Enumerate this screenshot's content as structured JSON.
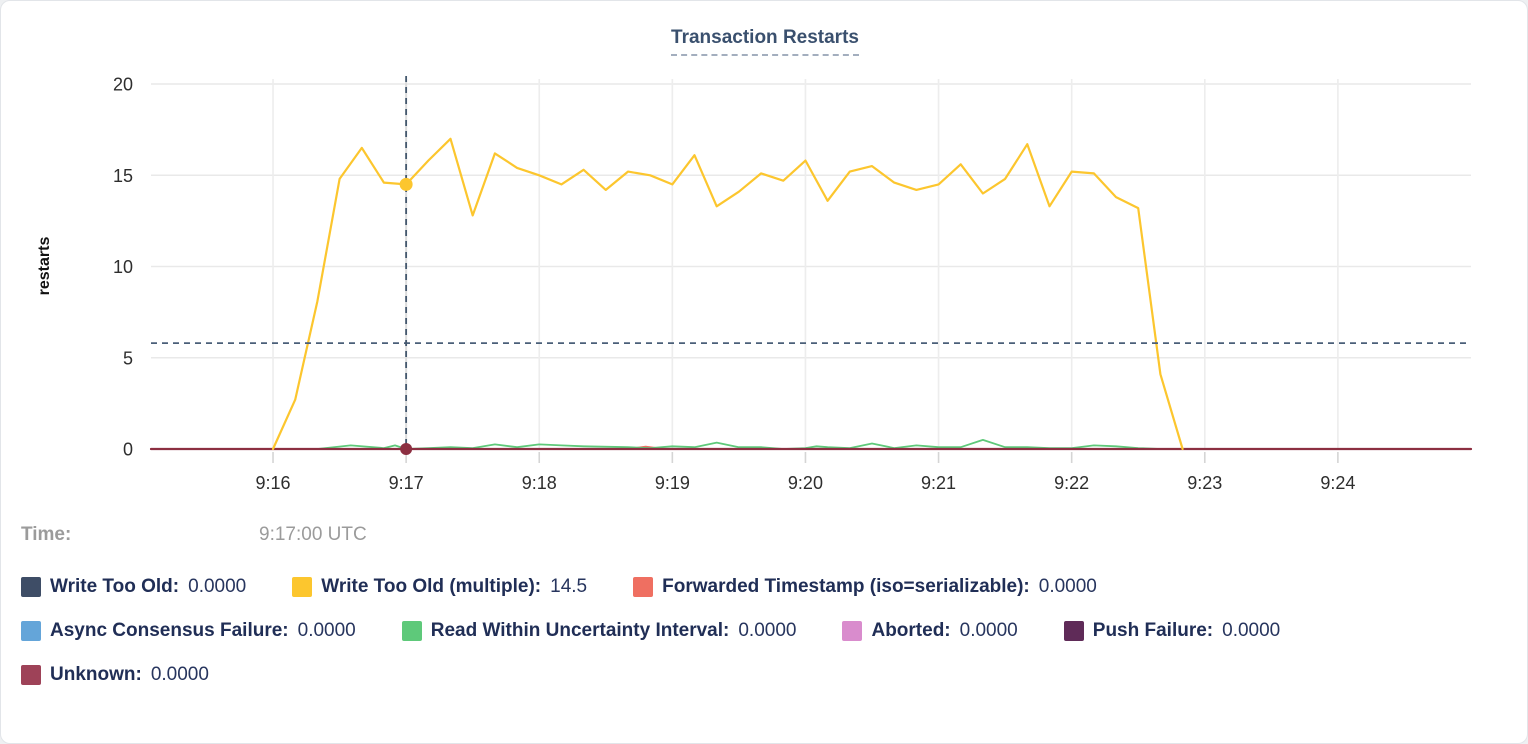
{
  "hover": {
    "time_label": "Time:",
    "time_value": "9:17:00 UTC"
  },
  "legend": {
    "rows": [
      [
        {
          "label": "Write Too Old:",
          "value": "0.0000",
          "color": "#3e4d66"
        },
        {
          "label": "Write Too Old (multiple):",
          "value": "14.5",
          "color": "#fcc62e"
        },
        {
          "label": "Forwarded Timestamp (iso=serializable):",
          "value": "0.0000",
          "color": "#ef6f61"
        }
      ],
      [
        {
          "label": "Async Consensus Failure:",
          "value": "0.0000",
          "color": "#64a5d9"
        },
        {
          "label": "Read Within Uncertainty Interval:",
          "value": "0.0000",
          "color": "#5ec97a"
        },
        {
          "label": "Aborted:",
          "value": "0.0000",
          "color": "#d98ccd"
        },
        {
          "label": "Push Failure:",
          "value": "0.0000",
          "color": "#5f2b58"
        }
      ],
      [
        {
          "label": "Unknown:",
          "value": "0.0000",
          "color": "#9e4258"
        }
      ]
    ]
  },
  "chart_data": {
    "type": "line",
    "title": "Transaction Restarts",
    "xlabel": "",
    "ylabel": "restarts",
    "ylim": [
      0,
      20
    ],
    "yticks": [
      0,
      5,
      10,
      15,
      20
    ],
    "xtick_labels": [
      "9:16",
      "9:17",
      "9:18",
      "9:19",
      "9:20",
      "9:21",
      "9:22",
      "9:23",
      "9:24"
    ],
    "x_domain": [
      "9:15:05",
      "9:25:00"
    ],
    "grid": true,
    "legend_position": "bottom",
    "crosshair": {
      "x": "9:17:00",
      "hline_value": 5.8,
      "points": [
        {
          "series": "Write Too Old (multiple)",
          "value": 14.5,
          "color": "#fcc62e",
          "r": 6.5
        },
        {
          "series": "Unknown",
          "value": 0,
          "color": "#8c2f41",
          "r": 6
        }
      ]
    },
    "series": [
      {
        "name": "Write Too Old",
        "color": "#3e4d66",
        "width": 1.5,
        "points": [
          [
            "9:15:05",
            0
          ],
          [
            "9:25:00",
            0
          ]
        ]
      },
      {
        "name": "Async Consensus Failure",
        "color": "#64a5d9",
        "width": 1.5,
        "points": [
          [
            "9:15:05",
            0
          ],
          [
            "9:25:00",
            0
          ]
        ]
      },
      {
        "name": "Aborted",
        "color": "#d98ccd",
        "width": 1.5,
        "points": [
          [
            "9:15:05",
            0
          ],
          [
            "9:25:00",
            0
          ]
        ]
      },
      {
        "name": "Push Failure",
        "color": "#5f2b58",
        "width": 1.5,
        "points": [
          [
            "9:15:05",
            0
          ],
          [
            "9:25:00",
            0
          ]
        ]
      },
      {
        "name": "Forwarded Timestamp (iso=serializable)",
        "color": "#ef6f61",
        "width": 2,
        "points": [
          [
            "9:15:05",
            0
          ],
          [
            "9:18:40",
            0
          ],
          [
            "9:18:48",
            0.12
          ],
          [
            "9:18:56",
            0
          ],
          [
            "9:25:00",
            0
          ]
        ]
      },
      {
        "name": "Read Within Uncertainty Interval",
        "color": "#5ec97a",
        "width": 1.8,
        "points": [
          [
            "9:16:20",
            0
          ],
          [
            "9:16:35",
            0.2
          ],
          [
            "9:16:50",
            0.05
          ],
          [
            "9:16:55",
            0.2
          ],
          [
            "9:17:00",
            0
          ],
          [
            "9:17:10",
            0.05
          ],
          [
            "9:17:20",
            0.1
          ],
          [
            "9:17:30",
            0.05
          ],
          [
            "9:17:40",
            0.25
          ],
          [
            "9:17:50",
            0.1
          ],
          [
            "9:18:00",
            0.25
          ],
          [
            "9:18:10",
            0.2
          ],
          [
            "9:18:20",
            0.15
          ],
          [
            "9:18:40",
            0.1
          ],
          [
            "9:18:50",
            0.05
          ],
          [
            "9:19:00",
            0.15
          ],
          [
            "9:19:10",
            0.1
          ],
          [
            "9:19:20",
            0.35
          ],
          [
            "9:19:30",
            0.1
          ],
          [
            "9:19:40",
            0.1
          ],
          [
            "9:19:50",
            0
          ],
          [
            "9:20:00",
            0.05
          ],
          [
            "9:20:05",
            0.15
          ],
          [
            "9:20:10",
            0.1
          ],
          [
            "9:20:20",
            0.05
          ],
          [
            "9:20:30",
            0.3
          ],
          [
            "9:20:40",
            0.05
          ],
          [
            "9:20:50",
            0.2
          ],
          [
            "9:21:00",
            0.1
          ],
          [
            "9:21:10",
            0.1
          ],
          [
            "9:21:20",
            0.5
          ],
          [
            "9:21:30",
            0.1
          ],
          [
            "9:21:40",
            0.1
          ],
          [
            "9:21:50",
            0.05
          ],
          [
            "9:22:00",
            0.05
          ],
          [
            "9:22:10",
            0.2
          ],
          [
            "9:22:20",
            0.15
          ],
          [
            "9:22:30",
            0.05
          ],
          [
            "9:22:40",
            0
          ]
        ]
      },
      {
        "name": "Unknown",
        "color": "#8c2f41",
        "width": 2.2,
        "points": [
          [
            "9:15:05",
            0
          ],
          [
            "9:25:00",
            0
          ]
        ]
      },
      {
        "name": "Write Too Old (multiple)",
        "color": "#fcc62e",
        "width": 2.2,
        "points": [
          [
            "9:16:00",
            0
          ],
          [
            "9:16:10",
            2.7
          ],
          [
            "9:16:20",
            8.1
          ],
          [
            "9:16:30",
            14.8
          ],
          [
            "9:16:40",
            16.5
          ],
          [
            "9:16:50",
            14.6
          ],
          [
            "9:17:00",
            14.5
          ],
          [
            "9:17:10",
            15.8
          ],
          [
            "9:17:20",
            17.0
          ],
          [
            "9:17:30",
            12.8
          ],
          [
            "9:17:40",
            16.2
          ],
          [
            "9:17:50",
            15.4
          ],
          [
            "9:18:00",
            15.0
          ],
          [
            "9:18:10",
            14.5
          ],
          [
            "9:18:20",
            15.3
          ],
          [
            "9:18:30",
            14.2
          ],
          [
            "9:18:40",
            15.2
          ],
          [
            "9:18:50",
            15.0
          ],
          [
            "9:19:00",
            14.5
          ],
          [
            "9:19:10",
            16.1
          ],
          [
            "9:19:20",
            13.3
          ],
          [
            "9:19:30",
            14.1
          ],
          [
            "9:19:40",
            15.1
          ],
          [
            "9:19:50",
            14.7
          ],
          [
            "9:20:00",
            15.8
          ],
          [
            "9:20:10",
            13.6
          ],
          [
            "9:20:20",
            15.2
          ],
          [
            "9:20:30",
            15.5
          ],
          [
            "9:20:40",
            14.6
          ],
          [
            "9:20:50",
            14.2
          ],
          [
            "9:21:00",
            14.5
          ],
          [
            "9:21:10",
            15.6
          ],
          [
            "9:21:20",
            14.0
          ],
          [
            "9:21:30",
            14.8
          ],
          [
            "9:21:40",
            16.7
          ],
          [
            "9:21:50",
            13.3
          ],
          [
            "9:22:00",
            15.2
          ],
          [
            "9:22:10",
            15.1
          ],
          [
            "9:22:20",
            13.8
          ],
          [
            "9:22:30",
            13.2
          ],
          [
            "9:22:40",
            4.1
          ],
          [
            "9:22:50",
            0
          ]
        ]
      }
    ]
  }
}
